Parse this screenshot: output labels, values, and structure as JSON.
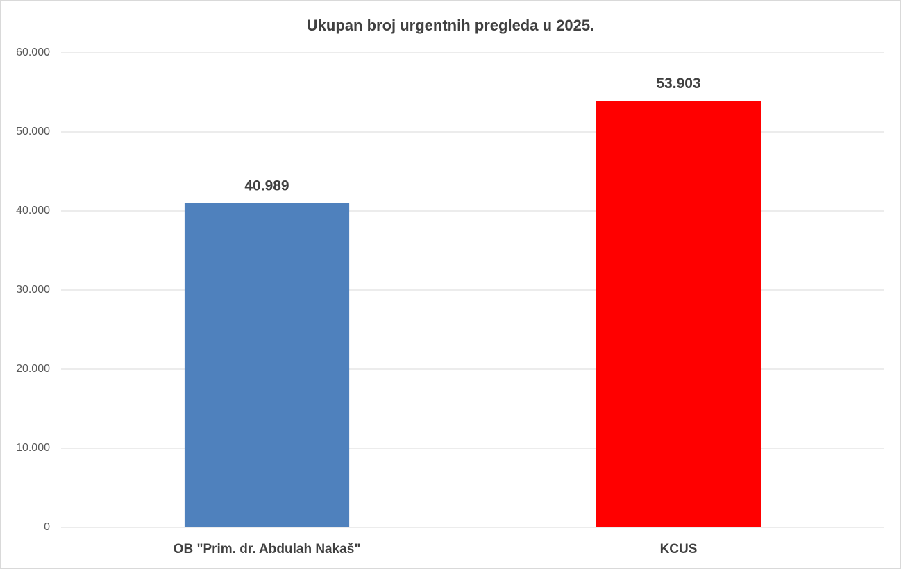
{
  "chart_data": {
    "type": "bar",
    "title": "Ukupan broj urgentnih pregleda u 2025.",
    "categories": [
      "OB \"Prim. dr. Abdulah Nakaš\"",
      "KCUS"
    ],
    "values": [
      40989,
      53903
    ],
    "value_labels": [
      "40.989",
      "53.903"
    ],
    "colors": [
      "#4f81bd",
      "#ff0000"
    ],
    "ylim": [
      0,
      60000
    ],
    "yticks": [
      0,
      {
        "value": 10000,
        "label": "10.000"
      },
      {
        "value": 20000,
        "label": "20.000"
      },
      {
        "value": 30000,
        "label": "30.000"
      },
      {
        "value": 40000,
        "label": "40.000"
      },
      {
        "value": 50000,
        "label": "50.000"
      },
      {
        "value": 60000,
        "label": "60.000"
      }
    ],
    "grid": true
  }
}
